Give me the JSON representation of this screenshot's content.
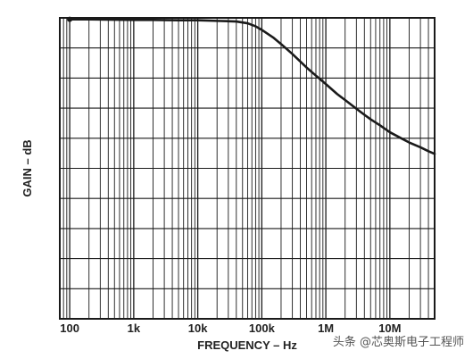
{
  "chart_data": {
    "type": "line",
    "title": "",
    "xlabel": "FREQUENCY – Hz",
    "ylabel": "GAIN – dB",
    "x_scale": "log",
    "xlim": [
      70,
      50000000
    ],
    "ylim": [
      0,
      10
    ],
    "x_ticks": [
      100,
      1000,
      10000,
      100000,
      1000000,
      10000000
    ],
    "x_tick_labels": [
      "100",
      "1k",
      "10k",
      "100k",
      "1M",
      "10M"
    ],
    "y_tick_labels": [],
    "grid": true,
    "series": [
      {
        "x": [
          100,
          200,
          500,
          1000,
          2000,
          5000,
          10000,
          20000,
          40000,
          60000,
          80000,
          100000,
          150000,
          200000,
          300000,
          500000,
          700000,
          1000000,
          1500000,
          2000000,
          3000000,
          4000000,
          5000000,
          7000000,
          10000000,
          15000000,
          20000000,
          30000000,
          40000000,
          50000000
        ],
        "y": [
          9.95,
          9.95,
          9.94,
          9.93,
          9.93,
          9.92,
          9.92,
          9.9,
          9.88,
          9.82,
          9.72,
          9.6,
          9.35,
          9.13,
          8.8,
          8.35,
          8.08,
          7.8,
          7.47,
          7.27,
          6.98,
          6.78,
          6.63,
          6.43,
          6.2,
          6.0,
          5.86,
          5.7,
          5.57,
          5.48
        ],
        "marker_at_start": true
      }
    ]
  },
  "watermark": "头条 @芯奥斯电子工程师"
}
